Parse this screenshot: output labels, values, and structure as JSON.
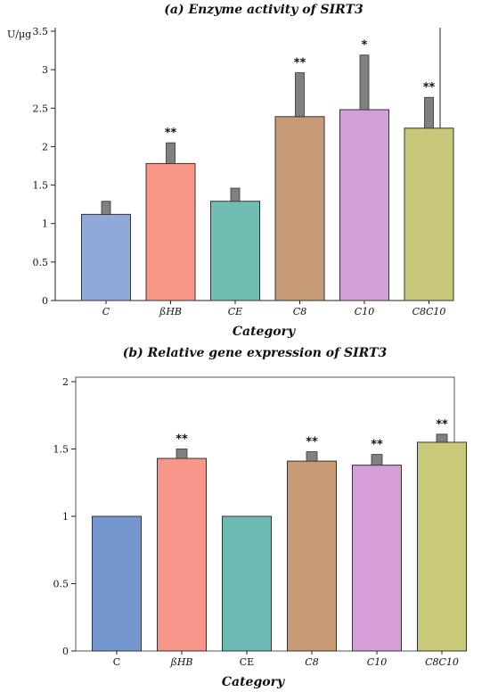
{
  "chart_data": [
    {
      "type": "bar",
      "title": "(a) Enzyme activity of SIRT3",
      "xlabel": "Category",
      "ylabel": "U/µg",
      "categories": [
        "C",
        "ßHB",
        "CE",
        "C8",
        "C10",
        "C8C10"
      ],
      "values": [
        1.12,
        1.78,
        1.29,
        2.39,
        2.48,
        2.24
      ],
      "errors": [
        0.17,
        0.27,
        0.17,
        0.57,
        0.71,
        0.4
      ],
      "significance": [
        "",
        "**",
        "",
        "**",
        "*",
        "**"
      ],
      "colors": [
        "#8fa9d8",
        "#f89688",
        "#6fbdb3",
        "#c59a74",
        "#d39fd9",
        "#c8c87a"
      ],
      "ylim": [
        0,
        3.5
      ],
      "yticks": [
        "0",
        "0.5",
        "1",
        "1.5",
        "2",
        "2.5",
        "3",
        "3.5"
      ],
      "grid": false
    },
    {
      "type": "bar",
      "title": "(b) Relative gene expression of SIRT3",
      "xlabel": "Category",
      "ylabel": "",
      "categories": [
        "C",
        "ßHB",
        "CE",
        "C8",
        "C10",
        "C8C10"
      ],
      "values": [
        1.0,
        1.43,
        1.0,
        1.41,
        1.38,
        1.55
      ],
      "errors": [
        0,
        0.07,
        0,
        0.07,
        0.08,
        0.06
      ],
      "significance": [
        "",
        "**",
        "",
        "**",
        "**",
        "**"
      ],
      "colors": [
        "#7497cf",
        "#f8968a",
        "#6bb9b2",
        "#c89a74",
        "#d49fd8",
        "#c8ca78"
      ],
      "ylim": [
        0,
        2
      ],
      "yticks": [
        "0",
        "0.5",
        "1",
        "1.5",
        "2"
      ],
      "grid": false
    }
  ]
}
